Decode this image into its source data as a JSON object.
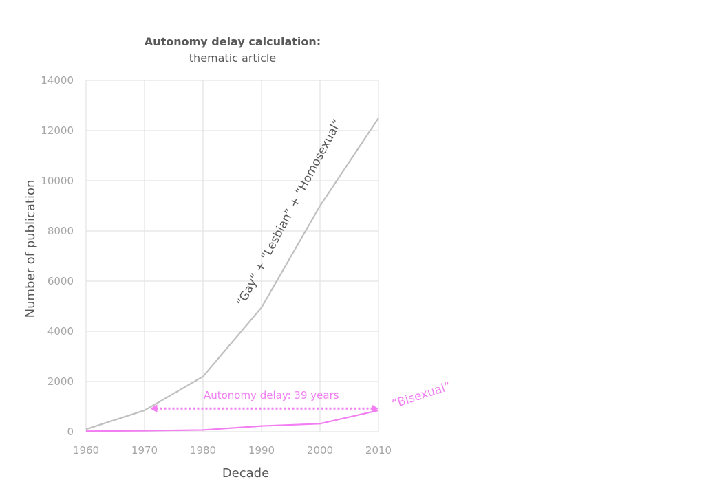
{
  "chart_data": {
    "type": "line",
    "title": "Autonomy delay calculation:",
    "subtitle": "thematic article",
    "xlabel": "Decade",
    "ylabel": "Number of publication",
    "x": [
      1960,
      1970,
      1980,
      1990,
      2000,
      2010
    ],
    "xlim": [
      1960,
      2010
    ],
    "ylim": [
      0,
      14000
    ],
    "yticks": [
      0,
      2000,
      4000,
      6000,
      8000,
      10000,
      12000,
      14000
    ],
    "xticks": [
      1960,
      1970,
      1980,
      1990,
      2000,
      2010
    ],
    "grid": true,
    "series": [
      {
        "name": "“Gay” + “Lesbian” + “Homosexual”",
        "color": "#bfbfbf",
        "values": [
          100,
          850,
          2200,
          4950,
          9000,
          12500
        ]
      },
      {
        "name": "“Bisexual”",
        "color": "#f27ef2",
        "values": [
          20,
          40,
          70,
          230,
          320,
          850
        ]
      }
    ],
    "annotations": [
      {
        "text": "Autonomy delay: 39 years",
        "from_x": 1971,
        "to_x": 2010,
        "y": 870,
        "color": "#f27ef2"
      }
    ]
  }
}
